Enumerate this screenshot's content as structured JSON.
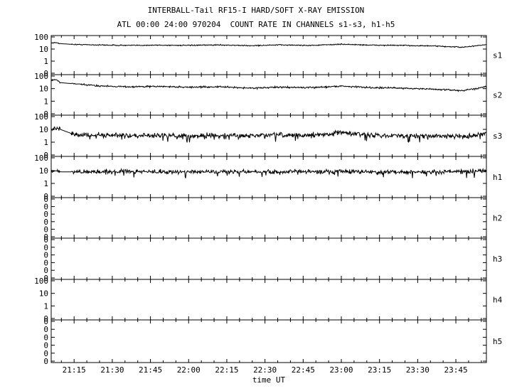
{
  "title": "INTERBALL-Tail RF15-I HARD/SOFT X-RAY EMISSION",
  "subtitle": "ATL 00:00 24:00 970204  COUNT RATE IN CHANNELS s1-s3, h1-h5",
  "chart_data": {
    "type": "line",
    "title": "INTERBALL-Tail RF15-I HARD/SOFT X-RAY EMISSION",
    "subtitle": "ATL 00:00 24:00 970204  COUNT RATE IN CHANNELS s1-s3, h1-h5",
    "xlabel": "time UT",
    "x_ticks": [
      "21:15",
      "21:30",
      "21:45",
      "22:00",
      "22:15",
      "22:30",
      "22:45",
      "23:00",
      "23:15",
      "23:30",
      "23:45"
    ],
    "x_tick_hours": [
      21.25,
      21.5,
      21.75,
      22.0,
      22.25,
      22.5,
      22.75,
      23.0,
      23.25,
      23.5,
      23.75
    ],
    "xlim_hours": [
      21.1,
      23.95
    ],
    "y_scale": "log",
    "grid": false,
    "panels": [
      {
        "name": "s1",
        "y_ticks": [
          "100",
          "10",
          "1",
          "0"
        ],
        "ylim": [
          0.1,
          100
        ],
        "has_data": true,
        "series": {
          "hours": [
            21.1,
            21.14,
            21.16,
            21.25,
            21.4,
            21.6,
            21.8,
            22.0,
            22.2,
            22.4,
            22.6,
            22.8,
            23.0,
            23.2,
            23.4,
            23.6,
            23.8,
            23.9,
            23.95
          ],
          "values": [
            33,
            33,
            28,
            24,
            22,
            20,
            21,
            20,
            22,
            19,
            22,
            20,
            25,
            21,
            20,
            18,
            14,
            20,
            23
          ],
          "noise": 0.08
        }
      },
      {
        "name": "s2",
        "y_ticks": [
          "100",
          "10",
          "1",
          "0"
        ],
        "ylim": [
          0.1,
          100
        ],
        "has_data": true,
        "series": {
          "hours": [
            21.1,
            21.14,
            21.16,
            21.25,
            21.4,
            21.6,
            21.8,
            22.0,
            22.2,
            22.4,
            22.6,
            22.8,
            23.0,
            23.2,
            23.4,
            23.6,
            23.8,
            23.9,
            23.95
          ],
          "values": [
            50,
            48,
            30,
            24,
            17,
            14,
            15,
            13,
            14,
            11,
            13,
            12,
            16,
            12,
            11,
            9,
            7,
            11,
            16
          ],
          "noise": 0.12
        }
      },
      {
        "name": "s3",
        "y_ticks": [
          "100",
          "10",
          "1",
          "0"
        ],
        "ylim": [
          0.1,
          100
        ],
        "has_data": true,
        "series": {
          "hours": [
            21.1,
            21.13,
            21.16,
            21.25,
            21.4,
            21.6,
            21.8,
            22.0,
            22.2,
            22.4,
            22.6,
            22.8,
            23.0,
            23.2,
            23.4,
            23.6,
            23.8,
            23.9,
            23.95
          ],
          "values": [
            12,
            13,
            10,
            4,
            3.5,
            3.2,
            3.4,
            3.0,
            3.3,
            3.2,
            3.6,
            3.3,
            6,
            3.5,
            3.2,
            3.0,
            3.0,
            3.6,
            6
          ],
          "noise": 0.35
        }
      },
      {
        "name": "h1",
        "y_ticks": [
          "100",
          "10",
          "1",
          "0"
        ],
        "ylim": [
          0.1,
          100
        ],
        "has_data": true,
        "series": {
          "hours": [
            21.1,
            21.13,
            21.16,
            21.25,
            21.4,
            21.6,
            21.8,
            22.0,
            22.2,
            22.4,
            22.6,
            22.8,
            23.0,
            23.2,
            23.4,
            23.6,
            23.8,
            23.9,
            23.95
          ],
          "values": [
            8,
            9,
            8,
            8,
            8,
            8.5,
            8,
            8,
            8.5,
            8,
            8,
            8,
            8.5,
            8,
            8,
            8,
            8.5,
            9,
            9
          ],
          "noise": 0.3
        }
      },
      {
        "name": "h2",
        "y_ticks": [
          "0",
          "0",
          "0",
          "0",
          "0",
          "0"
        ],
        "has_data": false
      },
      {
        "name": "h3",
        "y_ticks": [
          "0",
          "0",
          "0",
          "0",
          "0",
          "0"
        ],
        "has_data": false
      },
      {
        "name": "h4",
        "y_ticks": [
          "100",
          "10",
          "1",
          "0"
        ],
        "ylim": [
          0.1,
          100
        ],
        "has_data": false
      },
      {
        "name": "h5",
        "y_ticks": [
          "0",
          "0",
          "0",
          "0",
          "0",
          "0"
        ],
        "has_data": false
      }
    ]
  }
}
